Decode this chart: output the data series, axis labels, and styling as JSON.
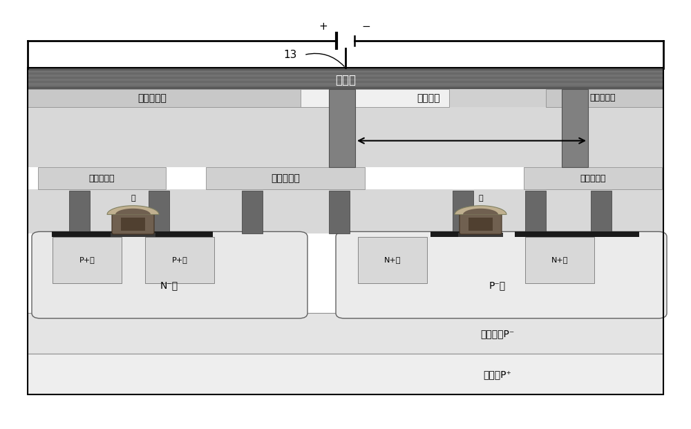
{
  "fig_width": 10.0,
  "fig_height": 6.21,
  "bg": "#ffffff",
  "colors": {
    "heater_dark": "#585858",
    "heater_mid": "#787878",
    "heater_light": "#989898",
    "second_contact": "#c8c8c8",
    "second_contact_light": "#d8d8d8",
    "via_plug": "#808080",
    "ild_bg": "#d8d8d8",
    "first_contact": "#c8c8c8",
    "first_contact_light": "#e0e0e0",
    "contact_plug": "#686868",
    "silicide": "#202020",
    "gate_poly": "#604030",
    "gate_poly_dark": "#403020",
    "gate_ox": "#303030",
    "gate_light": "#b0a090",
    "nwell": "#e8e8e8",
    "pwell": "#e8e8e8",
    "p_diff": "#d0d8d0",
    "n_diff": "#d0d0d8",
    "epi": "#e4e4e4",
    "substrate": "#eeeeee",
    "border_dark": "#404040",
    "border_med": "#808080",
    "white": "#ffffff",
    "black": "#000000"
  },
  "texts": {
    "heater": "加热板",
    "sc_left": "第二接触层",
    "via": "连接通孔",
    "sc_right": "第二接触层",
    "fc_left": "第一接触层",
    "fc_mid": "第一接触层",
    "fc_right": "第一接触层",
    "gate": "栅",
    "p_src": "P+源",
    "p_drn": "P+漏",
    "n_src": "N+源",
    "n_drn": "N+漏",
    "nwell": "N⁻阱",
    "pwell": "P⁻阱",
    "epi": "硅外延层P⁻",
    "sub": "硅衬底P⁺",
    "label13": "13"
  }
}
